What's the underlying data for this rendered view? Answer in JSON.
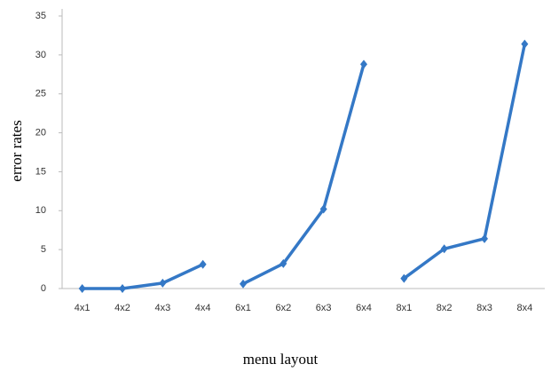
{
  "chart_data": {
    "type": "line",
    "x_label": "menu layout",
    "y_label": "error rates",
    "categories": [
      "4x1",
      "4x2",
      "4x3",
      "4x4",
      "6x1",
      "6x2",
      "6x3",
      "6x4",
      "8x1",
      "8x2",
      "8x3",
      "8x4"
    ],
    "series": [
      {
        "color": "#3478c6",
        "values": [
          0,
          0,
          0.7,
          3.1,
          null,
          null,
          null,
          null,
          null,
          null,
          null,
          null
        ]
      },
      {
        "color": "#3478c6",
        "values": [
          null,
          null,
          null,
          null,
          0.6,
          3.2,
          10.2,
          28.8,
          null,
          null,
          null,
          null
        ]
      },
      {
        "color": "#3478c6",
        "values": [
          null,
          null,
          null,
          null,
          null,
          null,
          null,
          null,
          1.3,
          5.1,
          6.4,
          31.4
        ]
      }
    ],
    "ylim": [
      0,
      35
    ],
    "yticks": [
      0,
      5,
      10,
      15,
      20,
      25,
      30,
      35
    ],
    "grid": false
  }
}
